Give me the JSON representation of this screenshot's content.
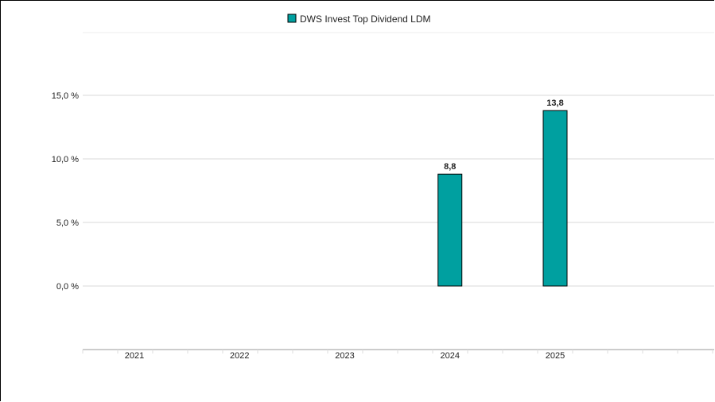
{
  "chart_data": {
    "type": "bar",
    "categories": [
      "2021",
      "2022",
      "2023",
      "2024",
      "2025"
    ],
    "series": [
      {
        "name": "DWS Invest Top Dividend LDM",
        "values": [
          null,
          null,
          null,
          8.8,
          13.8
        ],
        "data_labels": [
          "",
          "",
          "",
          "8,8",
          "13,8"
        ],
        "color": "#00a0a0"
      }
    ],
    "title": "",
    "xlabel": "",
    "ylabel": "",
    "ylim": [
      -5,
      20
    ],
    "yticks": [
      0,
      5,
      10,
      15
    ],
    "ytick_labels": [
      "0,0 %",
      "5,0 %",
      "10,0 %",
      "15,0 %"
    ],
    "grid": true,
    "legend_position": "top-center"
  }
}
